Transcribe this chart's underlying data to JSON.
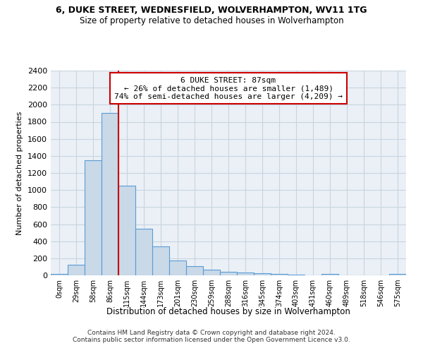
{
  "title": "6, DUKE STREET, WEDNESFIELD, WOLVERHAMPTON, WV11 1TG",
  "subtitle": "Size of property relative to detached houses in Wolverhampton",
  "xlabel": "Distribution of detached houses by size in Wolverhampton",
  "ylabel": "Number of detached properties",
  "bin_labels": [
    "0sqm",
    "29sqm",
    "58sqm",
    "86sqm",
    "115sqm",
    "144sqm",
    "173sqm",
    "201sqm",
    "230sqm",
    "259sqm",
    "288sqm",
    "316sqm",
    "345sqm",
    "374sqm",
    "403sqm",
    "431sqm",
    "460sqm",
    "489sqm",
    "518sqm",
    "546sqm",
    "575sqm"
  ],
  "bar_heights": [
    15,
    125,
    1350,
    1900,
    1050,
    550,
    340,
    170,
    110,
    65,
    45,
    30,
    25,
    20,
    10,
    0,
    20,
    0,
    0,
    0,
    15
  ],
  "bar_color": "#c9d9e8",
  "bar_edge_color": "#5b9bd5",
  "annotation_title": "6 DUKE STREET: 87sqm",
  "annotation_line1": "← 26% of detached houses are smaller (1,489)",
  "annotation_line2": "74% of semi-detached houses are larger (4,209) →",
  "annotation_box_color": "#ffffff",
  "annotation_box_edge_color": "#cc0000",
  "vline_x_index": 3.5,
  "vline_color": "#cc0000",
  "ylim": [
    0,
    2400
  ],
  "yticks": [
    0,
    200,
    400,
    600,
    800,
    1000,
    1200,
    1400,
    1600,
    1800,
    2000,
    2200,
    2400
  ],
  "footer_line1": "Contains HM Land Registry data © Crown copyright and database right 2024.",
  "footer_line2": "Contains public sector information licensed under the Open Government Licence v3.0.",
  "bg_color": "#ffffff",
  "plot_bg_color": "#eaf0f6",
  "grid_color": "#c8d4e0"
}
